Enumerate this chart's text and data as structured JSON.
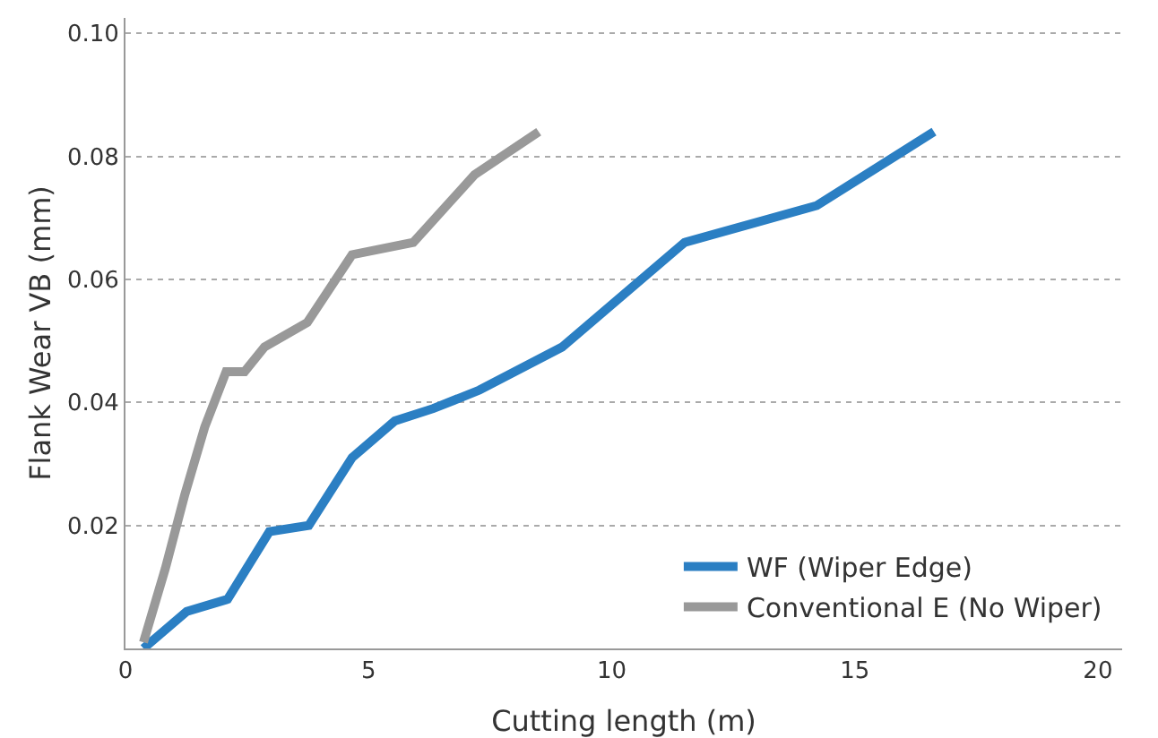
{
  "chart_data": {
    "type": "line",
    "xlabel": "Cutting length (m)",
    "ylabel": "Flank Wear VB (mm)",
    "xlim": [
      0,
      20.5
    ],
    "xticks": [
      0,
      5,
      10,
      15,
      20
    ],
    "ylim": [
      0,
      0.1025
    ],
    "yticks": [
      0.02,
      0.04,
      0.06,
      0.08,
      {
        "value": 0.1,
        "label": "0.10"
      }
    ],
    "grid": "y",
    "legend": "bottom right",
    "marker": "none",
    "line_style": "solid",
    "series": [
      {
        "name": "WF (Wiper Edge)",
        "color": "#2b7fc3",
        "x": [
          0.37,
          1.26,
          2.1,
          2.96,
          3.77,
          4.66,
          5.54,
          6.33,
          7.28,
          8.98,
          11.5,
          14.22,
          16.63
        ],
        "values": [
          0,
          0.006,
          0.008,
          0.019,
          0.02,
          0.031,
          0.037,
          0.039,
          0.042,
          0.049,
          0.066,
          0.072,
          0.084
        ]
      },
      {
        "name": "Conventional E (No Wiper)",
        "color": "#999999",
        "x": [
          0.37,
          0.82,
          1.22,
          1.63,
          2.07,
          2.45,
          2.86,
          3.74,
          4.66,
          5.92,
          7.18,
          8.5
        ],
        "values": [
          0.001,
          0.013,
          0.025,
          0.036,
          0.045,
          0.045,
          0.049,
          0.053,
          0.064,
          0.066,
          0.077,
          0.084
        ]
      }
    ]
  }
}
